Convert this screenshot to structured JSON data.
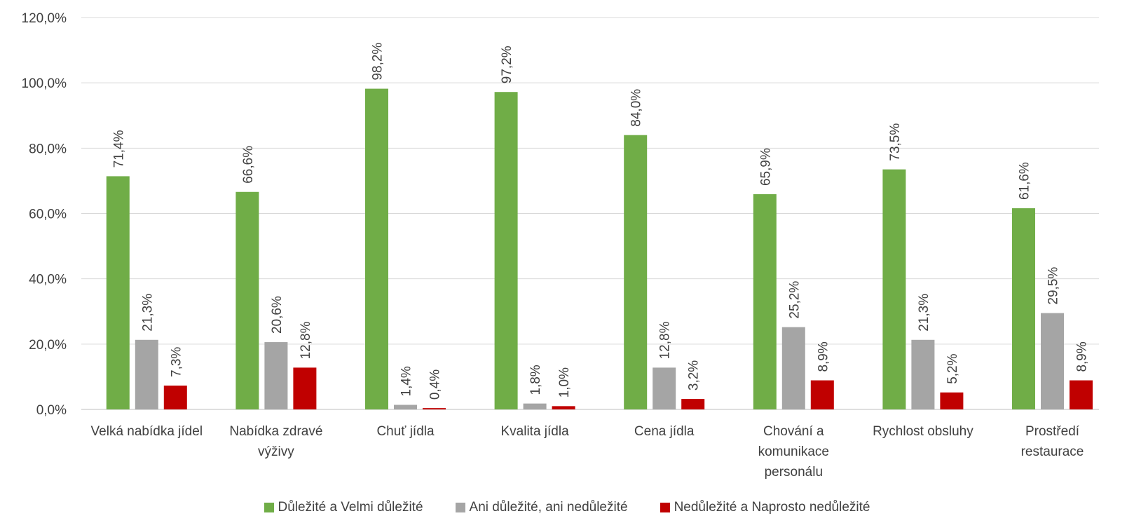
{
  "chart_data": {
    "type": "bar",
    "categories": [
      [
        "Velká nabídka jídel"
      ],
      [
        "Nabídka zdravé",
        "výživy"
      ],
      [
        "Chuť jídla"
      ],
      [
        "Kvalita jídla"
      ],
      [
        "Cena jídla"
      ],
      [
        "Chování a",
        "komunikace",
        "personálu"
      ],
      [
        "Rychlost obsluhy"
      ],
      [
        "Prostředí",
        "restaurace"
      ]
    ],
    "series": [
      {
        "name": "Důležité a Velmi důležité",
        "color": "#70ad47",
        "values": [
          71.4,
          66.6,
          98.2,
          97.2,
          84.0,
          65.9,
          73.5,
          61.6
        ],
        "labels": [
          "71,4%",
          "66,6%",
          "98,2%",
          "97,2%",
          "84,0%",
          "65,9%",
          "73,5%",
          "61,6%"
        ]
      },
      {
        "name": "Ani důležité, ani nedůležité",
        "color": "#a5a5a5",
        "values": [
          21.3,
          20.6,
          1.4,
          1.8,
          12.8,
          25.2,
          21.3,
          29.5
        ],
        "labels": [
          "21,3%",
          "20,6%",
          "1,4%",
          "1,8%",
          "12,8%",
          "25,2%",
          "21,3%",
          "29,5%"
        ]
      },
      {
        "name": "Nedůležité a Naprosto nedůležité",
        "color": "#c00000",
        "values": [
          7.3,
          12.8,
          0.4,
          1.0,
          3.2,
          8.9,
          5.2,
          8.9
        ],
        "labels": [
          "7,3%",
          "12,8%",
          "0,4%",
          "1,0%",
          "3,2%",
          "8,9%",
          "5,2%",
          "8,9%"
        ]
      }
    ],
    "yticks": [
      "0,0%",
      "20,0%",
      "40,0%",
      "60,0%",
      "80,0%",
      "100,0%",
      "120,0%"
    ],
    "ylim": [
      0,
      120
    ],
    "grid": true,
    "legend_position": "bottom"
  }
}
